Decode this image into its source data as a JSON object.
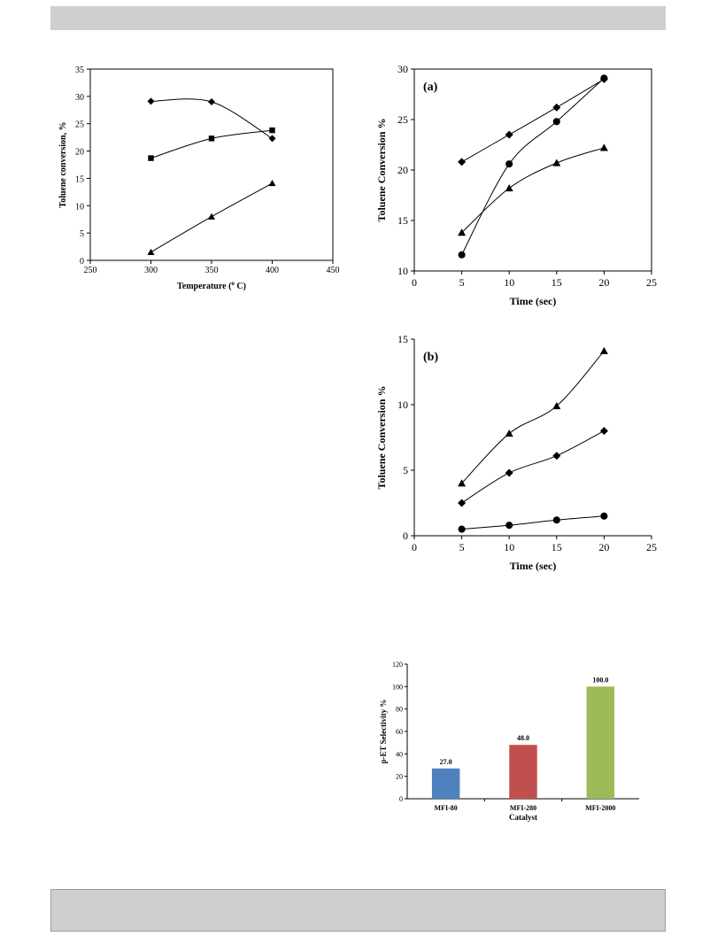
{
  "colors": {
    "band": "#cfcfcf",
    "line": "#000000"
  },
  "chart_data": [
    {
      "id": "temperature",
      "type": "line",
      "title": "",
      "xlabel": "Temperature (",
      "xlabel_sup": "o",
      "xlabel_suffix": " C)",
      "ylabel": "Toluene conversion, %",
      "xlim": [
        250,
        450
      ],
      "ylim": [
        0,
        35
      ],
      "xticks": [
        250,
        300,
        350,
        400,
        450
      ],
      "yticks": [
        0,
        5,
        10,
        15,
        20,
        25,
        30,
        35
      ],
      "x": [
        300,
        350,
        400
      ],
      "series": [
        {
          "marker": "diamond",
          "values": [
            29.1,
            29.0,
            22.3
          ]
        },
        {
          "marker": "square",
          "values": [
            18.7,
            22.3,
            23.8
          ]
        },
        {
          "marker": "triangle",
          "values": [
            1.5,
            8.0,
            14.1
          ]
        }
      ]
    },
    {
      "id": "panel-a",
      "type": "line",
      "panel_label": "(a)",
      "xlabel": "Time  (sec)",
      "ylabel": "Toluene Conversion  %",
      "xlim": [
        0,
        25
      ],
      "ylim": [
        10,
        30
      ],
      "xticks": [
        0,
        5,
        10,
        15,
        20,
        25
      ],
      "yticks": [
        10,
        15,
        20,
        25,
        30
      ],
      "x": [
        5,
        10,
        15,
        20
      ],
      "series": [
        {
          "marker": "diamond",
          "values": [
            20.8,
            23.5,
            26.2,
            29.0
          ]
        },
        {
          "marker": "circle",
          "values": [
            11.6,
            20.6,
            24.8,
            29.1
          ]
        },
        {
          "marker": "triangle",
          "values": [
            13.8,
            18.2,
            20.7,
            22.2
          ]
        }
      ]
    },
    {
      "id": "panel-b",
      "type": "line",
      "panel_label": "(b)",
      "xlabel": "Time  (sec)",
      "ylabel": "Toluene  Conversion  %",
      "xlim": [
        0,
        25
      ],
      "ylim": [
        0,
        15
      ],
      "xticks": [
        0,
        5,
        10,
        15,
        20,
        25
      ],
      "yticks": [
        0,
        5,
        10,
        15
      ],
      "x": [
        5,
        10,
        15,
        20
      ],
      "series": [
        {
          "marker": "triangle",
          "values": [
            4.0,
            7.8,
            9.9,
            14.1
          ]
        },
        {
          "marker": "diamond",
          "values": [
            2.5,
            4.8,
            6.1,
            8.0
          ]
        },
        {
          "marker": "circle",
          "values": [
            0.5,
            0.8,
            1.2,
            1.5
          ]
        }
      ]
    },
    {
      "id": "selectivity",
      "type": "bar",
      "xlabel": "Catalyst",
      "ylabel": "p-ET Selectivity %",
      "ylim": [
        0,
        120
      ],
      "yticks": [
        0,
        20,
        40,
        60,
        80,
        100,
        120
      ],
      "categories": [
        "MFI-80",
        "MFI-280",
        "MFI-2000"
      ],
      "values": [
        27.0,
        48.0,
        100.0
      ],
      "value_labels": [
        "27.0",
        "48.0",
        "100.0"
      ],
      "bar_colors": [
        "#4f81bd",
        "#c0504d",
        "#9bbb59"
      ]
    }
  ]
}
